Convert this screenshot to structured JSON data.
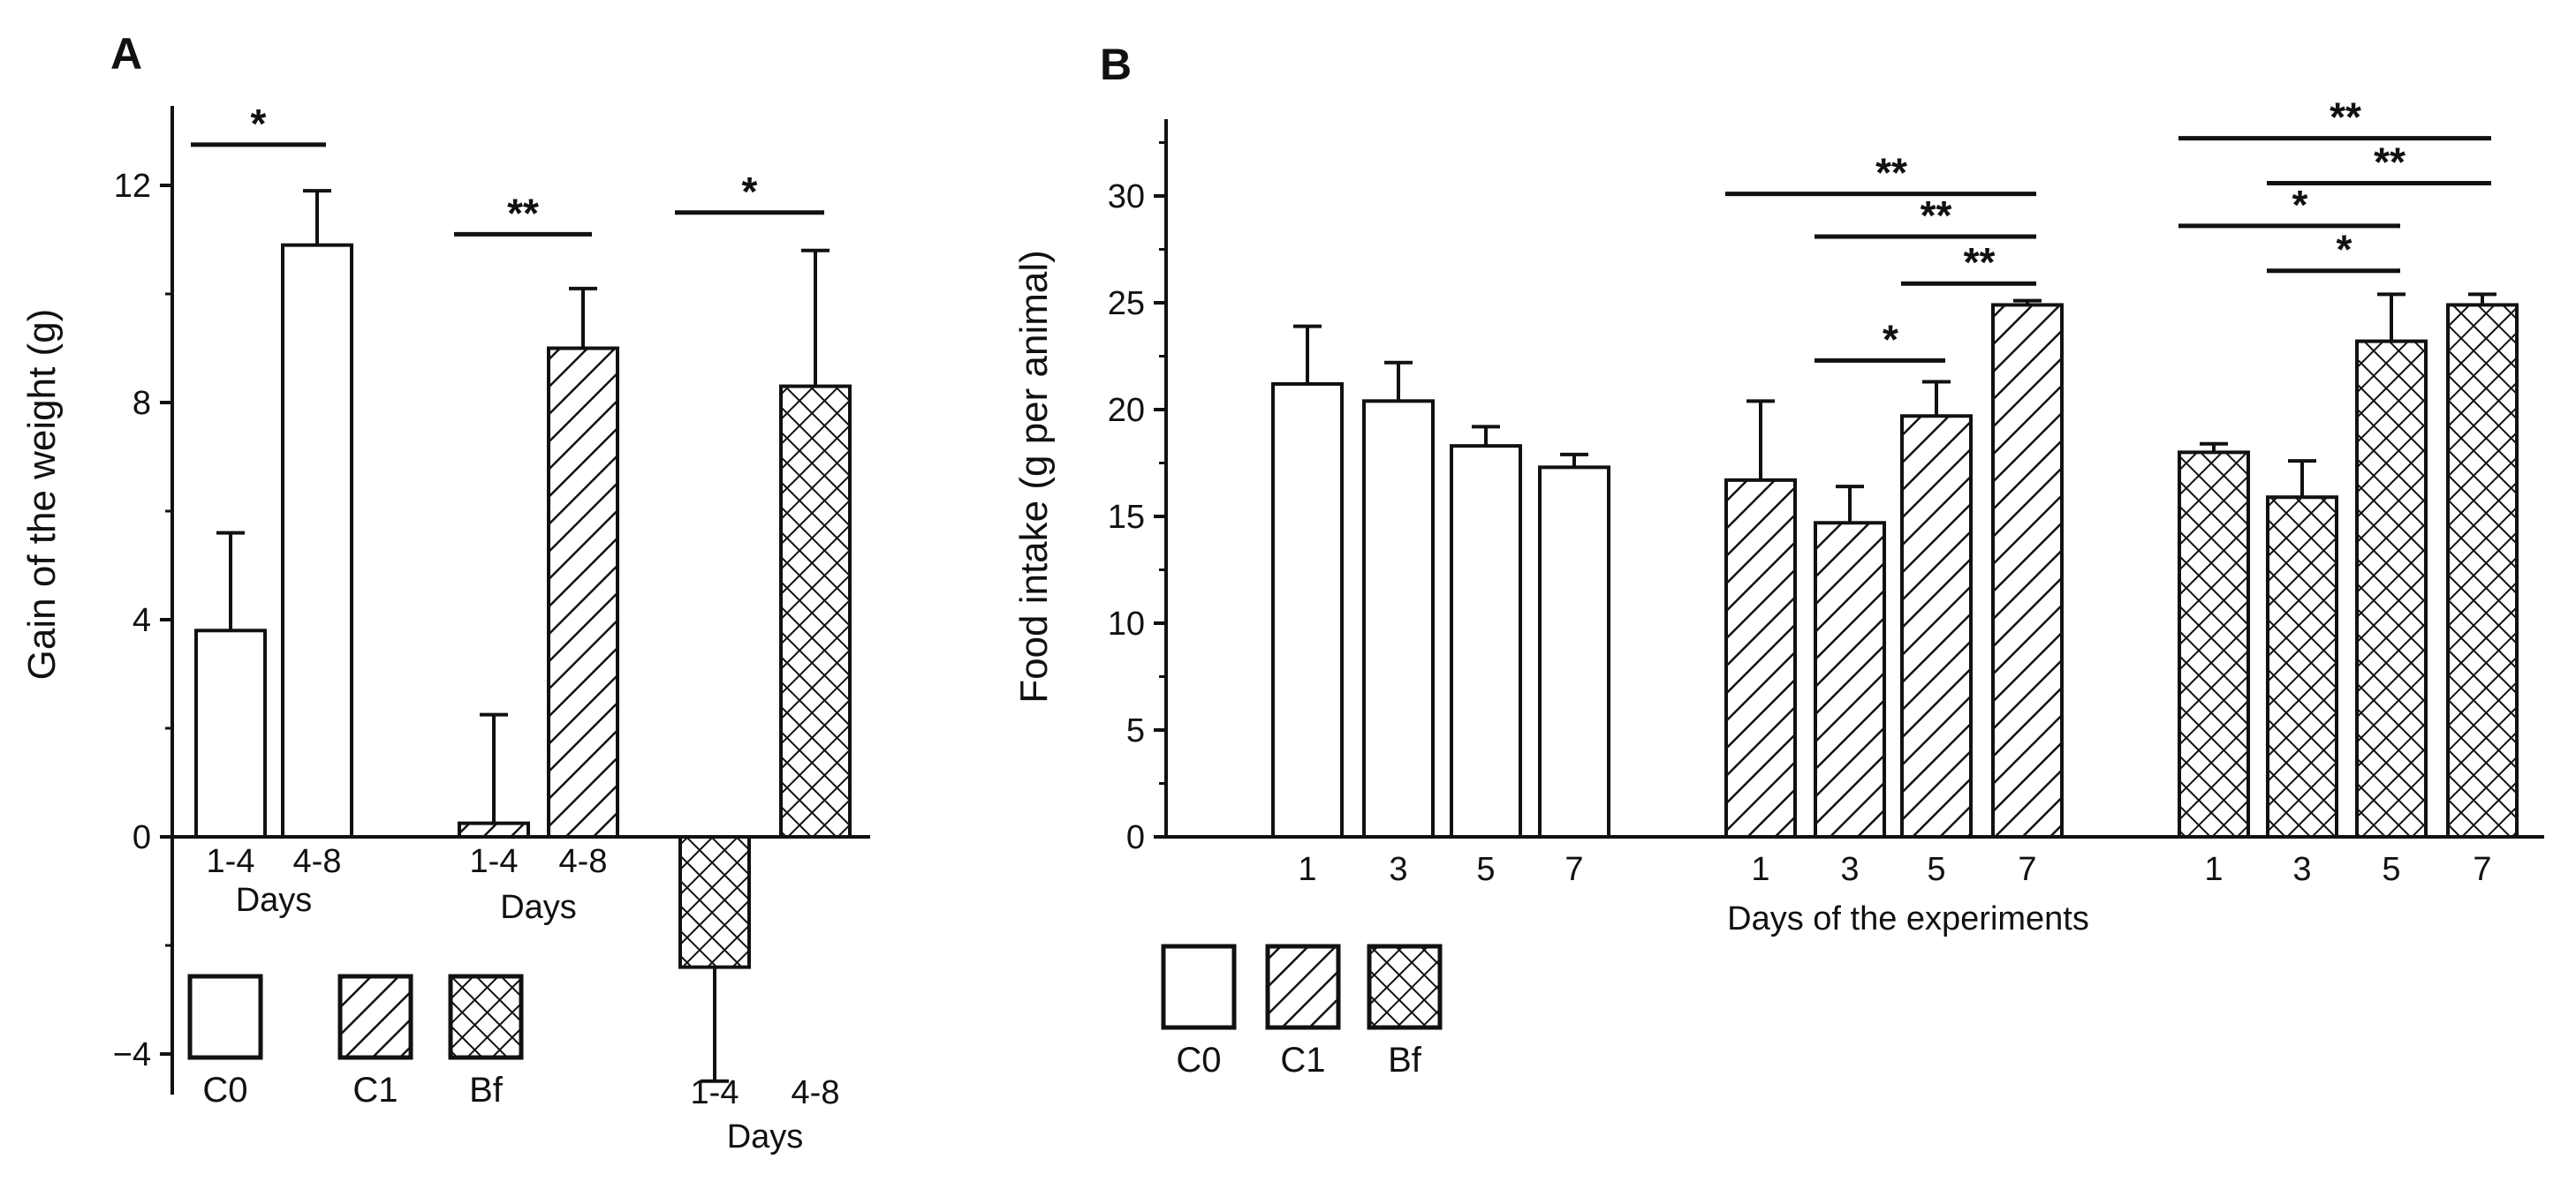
{
  "chart_data": [
    {
      "panel": "A",
      "type": "bar",
      "ylabel": "Gain of the weight (g)",
      "ylim": [
        -4.6,
        13.5
      ],
      "yticks": [
        -4,
        0,
        4,
        8,
        12
      ],
      "ytick_labels": [
        "−4",
        "0",
        "4",
        "8",
        "12"
      ],
      "groups": [
        {
          "name": "C0",
          "pattern": "open",
          "bars": [
            {
              "label": "1-4",
              "value": 3.8,
              "error": 1.8
            },
            {
              "label": "4-8",
              "value": 10.9,
              "error": 1.0
            }
          ],
          "days_label": "Days"
        },
        {
          "name": "C1",
          "pattern": "hatch",
          "bars": [
            {
              "label": "1-4",
              "value": 0.25,
              "error": 2.0
            },
            {
              "label": "4-8",
              "value": 9.0,
              "error": 1.1
            }
          ],
          "days_label": "Days"
        },
        {
          "name": "Bf",
          "pattern": "crosshatch",
          "bars": [
            {
              "label": "1-4",
              "value": -2.4,
              "error": 2.1
            },
            {
              "label": "4-8",
              "value": 8.3,
              "error": 2.5
            }
          ],
          "days_label": "Days"
        }
      ],
      "significance": [
        {
          "group": 0,
          "from": 0,
          "to": 1,
          "y": 12.75,
          "label": "*"
        },
        {
          "group": 1,
          "from": 0,
          "to": 1,
          "y": 11.1,
          "label": "**"
        },
        {
          "group": 2,
          "from": 0,
          "to": 1,
          "y": 11.5,
          "label": "*"
        }
      ],
      "legend": [
        {
          "label": "C0",
          "pattern": "open"
        },
        {
          "label": "C1",
          "pattern": "hatch"
        },
        {
          "label": "Bf",
          "pattern": "crosshatch"
        }
      ]
    },
    {
      "panel": "B",
      "type": "bar",
      "ylabel": "Food intake (g  per animal)",
      "xlabel": "Days of the experiments",
      "ylim": [
        0,
        33.5
      ],
      "yticks": [
        0,
        5,
        10,
        15,
        20,
        25,
        30
      ],
      "ytick_labels": [
        "0",
        "5",
        "10",
        "15",
        "20",
        "25",
        "30"
      ],
      "groups": [
        {
          "name": "C0",
          "pattern": "open",
          "bars": [
            {
              "label": "1",
              "value": 21.2,
              "error": 2.7
            },
            {
              "label": "3",
              "value": 20.4,
              "error": 1.8
            },
            {
              "label": "5",
              "value": 18.3,
              "error": 0.9
            },
            {
              "label": "7",
              "value": 17.3,
              "error": 0.6
            }
          ]
        },
        {
          "name": "C1",
          "pattern": "hatch",
          "bars": [
            {
              "label": "1",
              "value": 16.7,
              "error": 3.7
            },
            {
              "label": "3",
              "value": 14.7,
              "error": 1.7
            },
            {
              "label": "5",
              "value": 19.7,
              "error": 1.6
            },
            {
              "label": "7",
              "value": 24.9,
              "error": 0.2
            }
          ]
        },
        {
          "name": "Bf",
          "pattern": "crosshatch",
          "bars": [
            {
              "label": "1",
              "value": 18.0,
              "error": 0.4
            },
            {
              "label": "3",
              "value": 15.9,
              "error": 1.7
            },
            {
              "label": "5",
              "value": 23.2,
              "error": 2.2
            },
            {
              "label": "7",
              "value": 24.9,
              "error": 0.5
            }
          ]
        }
      ],
      "significance": [
        {
          "group": 1,
          "from": 0,
          "to": 3,
          "y": 30.1,
          "label": "**"
        },
        {
          "group": 1,
          "from": 1,
          "to": 3,
          "y": 28.1,
          "label": "**"
        },
        {
          "group": 1,
          "from": 2,
          "to": 3,
          "y": 25.9,
          "label": "**"
        },
        {
          "group": 1,
          "from": 1,
          "to": 2,
          "y": 22.3,
          "label": "*"
        },
        {
          "group": 2,
          "from": 0,
          "to": 3,
          "y": 32.7,
          "label": "**"
        },
        {
          "group": 2,
          "from": 1,
          "to": 3,
          "y": 30.6,
          "label": "**"
        },
        {
          "group": 2,
          "from": 0,
          "to": 2,
          "y": 28.6,
          "label": "*"
        },
        {
          "group": 2,
          "from": 1,
          "to": 2,
          "y": 26.5,
          "label": "*"
        }
      ],
      "legend": [
        {
          "label": "C0",
          "pattern": "open"
        },
        {
          "label": "C1",
          "pattern": "hatch"
        },
        {
          "label": "Bf",
          "pattern": "crosshatch"
        }
      ]
    }
  ]
}
